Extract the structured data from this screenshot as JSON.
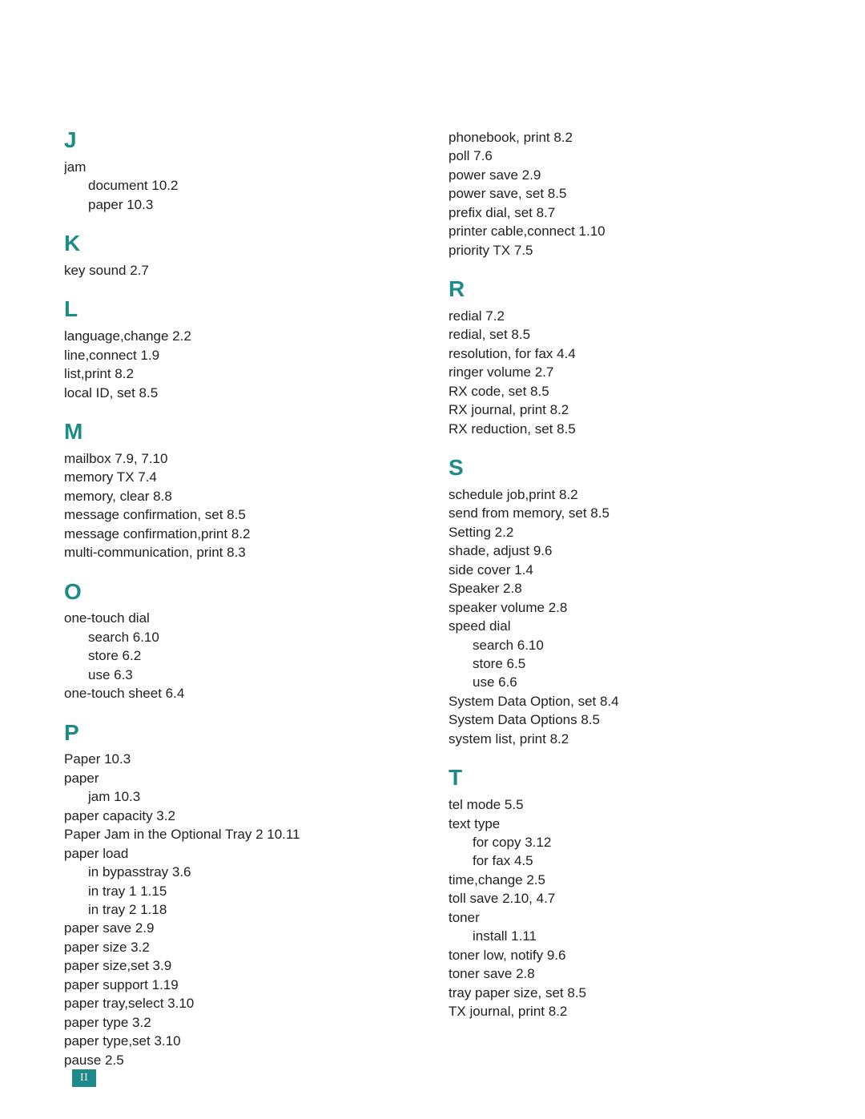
{
  "colors": {
    "heading": "#1e8a8a",
    "text": "#222222",
    "page_marker_bg": "#1e8a8a",
    "page_marker_fg": "#ffffff",
    "background": "#ffffff"
  },
  "typography": {
    "heading_fontsize_pt": 21,
    "body_fontsize_pt": 13,
    "heading_weight": 700,
    "body_weight": 400
  },
  "page_number": "II",
  "columns": [
    {
      "sections": [
        {
          "letter": "J",
          "entries": [
            {
              "level": 0,
              "text": "jam"
            },
            {
              "level": 1,
              "text": "document 10.2"
            },
            {
              "level": 1,
              "text": "paper 10.3"
            }
          ]
        },
        {
          "letter": "K",
          "entries": [
            {
              "level": 0,
              "text": "key sound 2.7"
            }
          ]
        },
        {
          "letter": "L",
          "entries": [
            {
              "level": 0,
              "text": "language,change 2.2"
            },
            {
              "level": 0,
              "text": "line,connect 1.9"
            },
            {
              "level": 0,
              "text": "list,print 8.2"
            },
            {
              "level": 0,
              "text": "local ID, set 8.5"
            }
          ]
        },
        {
          "letter": "M",
          "entries": [
            {
              "level": 0,
              "text": "mailbox 7.9, 7.10"
            },
            {
              "level": 0,
              "text": "memory TX 7.4"
            },
            {
              "level": 0,
              "text": "memory, clear 8.8"
            },
            {
              "level": 0,
              "text": "message confirmation, set 8.5"
            },
            {
              "level": 0,
              "text": "message confirmation,print 8.2"
            },
            {
              "level": 0,
              "text": "multi-communication, print 8.3"
            }
          ]
        },
        {
          "letter": "O",
          "entries": [
            {
              "level": 0,
              "text": "one-touch dial"
            },
            {
              "level": 1,
              "text": "search 6.10"
            },
            {
              "level": 1,
              "text": "store 6.2"
            },
            {
              "level": 1,
              "text": "use 6.3"
            },
            {
              "level": 0,
              "text": "one-touch sheet 6.4"
            }
          ]
        },
        {
          "letter": "P",
          "entries": [
            {
              "level": 0,
              "text": "Paper 10.3"
            },
            {
              "level": 0,
              "text": "paper"
            },
            {
              "level": 1,
              "text": "jam 10.3"
            },
            {
              "level": 0,
              "text": "paper capacity 3.2"
            },
            {
              "level": 0,
              "text": "Paper Jam in the Optional Tray 2 10.11"
            },
            {
              "level": 0,
              "text": "paper load"
            },
            {
              "level": 1,
              "text": "in bypasstray 3.6"
            },
            {
              "level": 1,
              "text": "in tray 1 1.15"
            },
            {
              "level": 1,
              "text": "in tray 2 1.18"
            },
            {
              "level": 0,
              "text": "paper save 2.9"
            },
            {
              "level": 0,
              "text": "paper size 3.2"
            },
            {
              "level": 0,
              "text": "paper size,set 3.9"
            },
            {
              "level": 0,
              "text": "paper support 1.19"
            },
            {
              "level": 0,
              "text": "paper tray,select 3.10"
            },
            {
              "level": 0,
              "text": "paper type 3.2"
            },
            {
              "level": 0,
              "text": "paper type,set 3.10"
            },
            {
              "level": 0,
              "text": "pause 2.5"
            }
          ]
        }
      ]
    },
    {
      "sections": [
        {
          "letter": "",
          "entries": [
            {
              "level": 0,
              "text": "phonebook, print 8.2"
            },
            {
              "level": 0,
              "text": "poll 7.6"
            },
            {
              "level": 0,
              "text": "power save 2.9"
            },
            {
              "level": 0,
              "text": "power save, set 8.5"
            },
            {
              "level": 0,
              "text": "prefix dial, set 8.7"
            },
            {
              "level": 0,
              "text": "printer cable,connect 1.10"
            },
            {
              "level": 0,
              "text": "priority TX 7.5"
            }
          ]
        },
        {
          "letter": "R",
          "entries": [
            {
              "level": 0,
              "text": "redial 7.2"
            },
            {
              "level": 0,
              "text": "redial, set 8.5"
            },
            {
              "level": 0,
              "text": "resolution, for fax 4.4"
            },
            {
              "level": 0,
              "text": "ringer volume 2.7"
            },
            {
              "level": 0,
              "text": "RX code, set 8.5"
            },
            {
              "level": 0,
              "text": "RX journal, print 8.2"
            },
            {
              "level": 0,
              "text": "RX reduction, set 8.5"
            }
          ]
        },
        {
          "letter": "S",
          "entries": [
            {
              "level": 0,
              "text": "schedule job,print 8.2"
            },
            {
              "level": 0,
              "text": "send from memory, set 8.5"
            },
            {
              "level": 0,
              "text": "Setting 2.2"
            },
            {
              "level": 0,
              "text": "shade, adjust 9.6"
            },
            {
              "level": 0,
              "text": "side cover 1.4"
            },
            {
              "level": 0,
              "text": "Speaker 2.8"
            },
            {
              "level": 0,
              "text": "speaker volume 2.8"
            },
            {
              "level": 0,
              "text": "speed dial"
            },
            {
              "level": 1,
              "text": "search 6.10"
            },
            {
              "level": 1,
              "text": "store 6.5"
            },
            {
              "level": 1,
              "text": "use 6.6"
            },
            {
              "level": 0,
              "text": "System Data Option, set 8.4"
            },
            {
              "level": 0,
              "text": "System Data Options 8.5"
            },
            {
              "level": 0,
              "text": "system list, print 8.2"
            }
          ]
        },
        {
          "letter": "T",
          "entries": [
            {
              "level": 0,
              "text": "tel mode 5.5"
            },
            {
              "level": 0,
              "text": "text type"
            },
            {
              "level": 1,
              "text": "for copy 3.12"
            },
            {
              "level": 1,
              "text": "for fax 4.5"
            },
            {
              "level": 0,
              "text": "time,change 2.5"
            },
            {
              "level": 0,
              "text": "toll save 2.10, 4.7"
            },
            {
              "level": 0,
              "text": "toner"
            },
            {
              "level": 1,
              "text": "install 1.11"
            },
            {
              "level": 0,
              "text": "toner low, notify 9.6"
            },
            {
              "level": 0,
              "text": "toner save 2.8"
            },
            {
              "level": 0,
              "text": "tray paper size, set 8.5"
            },
            {
              "level": 0,
              "text": "TX journal, print 8.2"
            }
          ]
        }
      ]
    }
  ]
}
